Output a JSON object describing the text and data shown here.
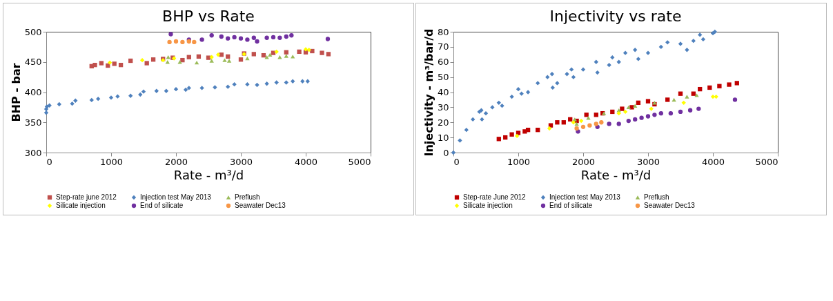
{
  "chart_data": [
    {
      "type": "scatter",
      "title": "BHP vs Rate",
      "xlabel": "Rate - m³/d",
      "ylabel": "BHP - bar",
      "xlim": [
        0,
        5000
      ],
      "xticks": [
        0,
        1000,
        2000,
        3000,
        4000,
        5000
      ],
      "ylim": [
        300,
        500
      ],
      "yticks": [
        300,
        350,
        400,
        450,
        500
      ],
      "legend": "bottom",
      "series": [
        {
          "name": "Step-rate june 2012",
          "color": "#c0504d",
          "marker": "square",
          "x": [
            700,
            750,
            850,
            950,
            1050,
            1150,
            1300,
            1550,
            1650,
            1800,
            1950,
            2100,
            2200,
            2350,
            2500,
            2700,
            2800,
            3000,
            3050,
            3200,
            3350,
            3500,
            3700,
            3900,
            4000,
            4100,
            4250,
            4350
          ],
          "values": [
            443,
            445,
            448,
            444,
            447,
            445,
            452,
            448,
            454,
            455,
            457,
            453,
            458,
            459,
            457,
            462,
            459,
            454,
            464,
            463,
            461,
            465,
            466,
            467,
            466,
            468,
            465,
            463
          ]
        },
        {
          "name": "Injection test May 2013",
          "color": "#4f81bd",
          "marker": "diamond",
          "x": [
            0,
            0,
            10,
            50,
            200,
            400,
            450,
            700,
            800,
            1000,
            1100,
            1300,
            1450,
            1500,
            1700,
            1850,
            2000,
            2150,
            2200,
            2400,
            2600,
            2800,
            2900,
            3100,
            3250,
            3400,
            3550,
            3700,
            3800,
            3950,
            4030
          ],
          "values": [
            366,
            372,
            376,
            378,
            380,
            381,
            386,
            387,
            389,
            391,
            393,
            394,
            396,
            401,
            402,
            402,
            405,
            404,
            407,
            407,
            408,
            409,
            413,
            413,
            412,
            414,
            416,
            416,
            418,
            418,
            418
          ]
        },
        {
          "name": "Preflush",
          "color": "#9bbb59",
          "marker": "triangle",
          "x": [
            1870,
            1880,
            2060,
            2320,
            2550,
            2750,
            2820,
            3100,
            3400,
            3450,
            3600,
            3700,
            3800
          ],
          "values": [
            450,
            458,
            450,
            449,
            452,
            453,
            452,
            456,
            458,
            462,
            458,
            460,
            459
          ]
        },
        {
          "name": "Silicate injection",
          "color": "#ffff00",
          "marker": "diamond",
          "x": [
            980,
            1480,
            1800,
            1970,
            2550,
            2650,
            3050,
            3550,
            4000,
            4050
          ],
          "values": [
            449,
            453,
            453,
            456,
            458,
            462,
            463,
            467,
            471,
            470
          ]
        },
        {
          "name": "End of silicate",
          "color": "#7030a0",
          "marker": "circle",
          "x": [
            1920,
            2200,
            2400,
            2550,
            2700,
            2800,
            2900,
            3000,
            3100,
            3200,
            3250,
            3400,
            3500,
            3600,
            3700,
            3780,
            4340
          ],
          "values": [
            496,
            487,
            487,
            494,
            492,
            489,
            491,
            489,
            487,
            490,
            484,
            490,
            491,
            490,
            492,
            494,
            488
          ]
        },
        {
          "name": "Seawater Dec13",
          "color": "#f79646",
          "marker": "circle",
          "x": [
            1900,
            2000,
            2100,
            2200,
            2280
          ],
          "values": [
            483,
            484,
            483,
            484,
            483
          ]
        }
      ]
    },
    {
      "type": "scatter",
      "title": "Injectivity vs rate",
      "xlabel": "Rate - m³/d",
      "ylabel": "Injectivity - m³/bar/d",
      "xlim": [
        0,
        5000
      ],
      "xticks": [
        0,
        1000,
        2000,
        3000,
        4000,
        5000
      ],
      "ylim": [
        0,
        80
      ],
      "yticks": [
        0,
        10,
        20,
        30,
        40,
        50,
        60,
        70,
        80
      ],
      "legend": "bottom",
      "series": [
        {
          "name": "Step-rate June 2012",
          "color": "#c00000",
          "marker": "square",
          "x": [
            700,
            800,
            900,
            1000,
            1100,
            1150,
            1300,
            1500,
            1600,
            1700,
            1800,
            1900,
            2050,
            2200,
            2300,
            2450,
            2600,
            2750,
            2850,
            3000,
            3100,
            3300,
            3500,
            3700,
            3800,
            3950,
            4100,
            4250,
            4370
          ],
          "values": [
            9,
            10,
            12,
            13,
            14,
            15,
            15,
            18,
            20,
            20,
            22,
            21,
            25,
            25,
            26,
            27,
            29,
            30,
            33,
            34,
            32,
            35,
            39,
            39,
            42,
            43,
            44,
            45,
            46
          ]
        },
        {
          "name": "Injection test May 2013",
          "color": "#4f81bd",
          "marker": "diamond",
          "x": [
            0,
            100,
            200,
            300,
            400,
            430,
            440,
            500,
            600,
            700,
            750,
            900,
            1000,
            1050,
            1150,
            1300,
            1450,
            1520,
            1530,
            1600,
            1750,
            1820,
            1850,
            2000,
            2200,
            2220,
            2400,
            2450,
            2550,
            2650,
            2800,
            2850,
            3000,
            3200,
            3300,
            3500,
            3600,
            3700,
            3800,
            3850,
            4000,
            4030
          ],
          "values": [
            0,
            8,
            15,
            22,
            27,
            28,
            22,
            26,
            30,
            33,
            31,
            37,
            42,
            39,
            40,
            46,
            50,
            52,
            43,
            46,
            52,
            55,
            50,
            55,
            60,
            53,
            58,
            63,
            60,
            66,
            68,
            62,
            66,
            70,
            73,
            72,
            68,
            74,
            78,
            75,
            79,
            80
          ]
        },
        {
          "name": "Preflush",
          "color": "#9bbb59",
          "marker": "triangle",
          "x": [
            1870,
            1900,
            2080,
            2320,
            2550,
            2700,
            2800,
            3100,
            3400,
            3600,
            3750
          ],
          "values": [
            22,
            19,
            23,
            26,
            28,
            30,
            31,
            33,
            35,
            37,
            38
          ]
        },
        {
          "name": "Silicate injection",
          "color": "#ffff00",
          "marker": "diamond",
          "x": [
            980,
            1480,
            1850,
            1970,
            2550,
            2650,
            3050,
            3550,
            4000,
            4050
          ],
          "values": [
            11,
            16,
            20,
            21,
            26,
            27,
            29,
            33,
            37,
            37
          ]
        },
        {
          "name": "End of silicate",
          "color": "#7030a0",
          "marker": "circle",
          "x": [
            1920,
            2220,
            2400,
            2550,
            2700,
            2800,
            2900,
            3000,
            3100,
            3200,
            3350,
            3500,
            3650,
            3780,
            4340
          ],
          "values": [
            14,
            17,
            19,
            19,
            21,
            22,
            23,
            24,
            25,
            26,
            26,
            27,
            28,
            29,
            35
          ]
        },
        {
          "name": "Seawater Dec13",
          "color": "#f79646",
          "marker": "circle",
          "x": [
            1900,
            2000,
            2100,
            2200,
            2280
          ],
          "values": [
            16,
            17,
            18,
            19,
            20
          ]
        }
      ]
    }
  ]
}
